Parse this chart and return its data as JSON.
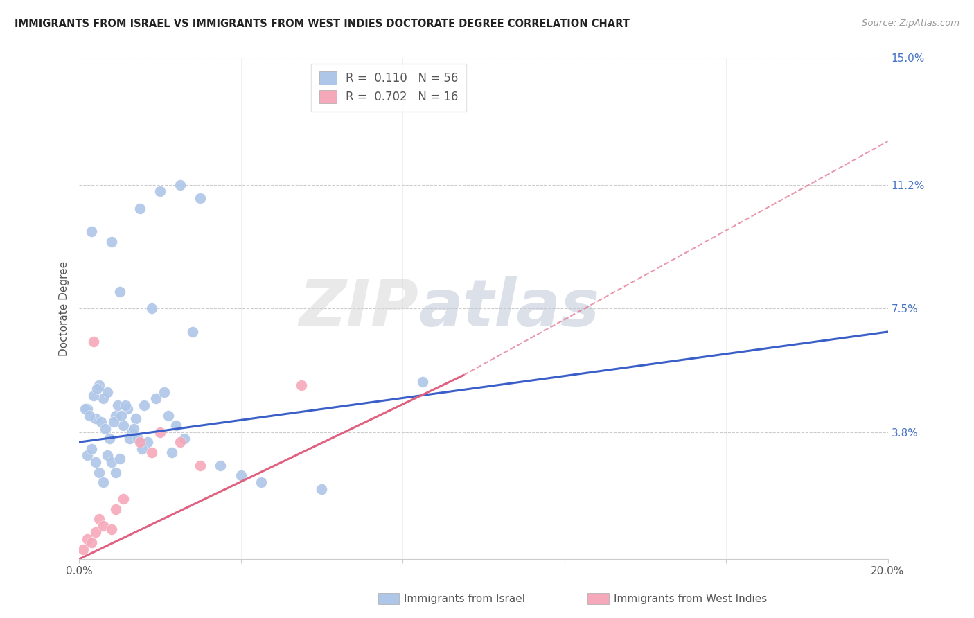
{
  "title": "IMMIGRANTS FROM ISRAEL VS IMMIGRANTS FROM WEST INDIES DOCTORATE DEGREE CORRELATION CHART",
  "source": "Source: ZipAtlas.com",
  "ylabel": "Doctorate Degree",
  "xlim": [
    0.0,
    20.0
  ],
  "ylim": [
    0.0,
    15.0
  ],
  "ytick_labels": [
    "3.8%",
    "7.5%",
    "11.2%",
    "15.0%"
  ],
  "ytick_values": [
    3.8,
    7.5,
    11.2,
    15.0
  ],
  "israel_color": "#aec6e8",
  "west_indies_color": "#f5a8ba",
  "israel_line_color": "#3a5fc8",
  "west_indies_line_color": "#e06080",
  "israel_R": 0.11,
  "israel_N": 56,
  "west_indies_R": 0.702,
  "west_indies_N": 16,
  "legend_label_1": "Immigrants from Israel",
  "legend_label_2": "Immigrants from West Indies",
  "watermark_zip": "ZIP",
  "watermark_atlas": "atlas",
  "background_color": "#ffffff",
  "israel_scatter_x": [
    0.5,
    0.8,
    1.5,
    2.0,
    2.5,
    3.0,
    0.3,
    1.0,
    1.8,
    2.8,
    0.2,
    0.4,
    0.6,
    0.7,
    0.9,
    1.1,
    1.2,
    1.3,
    1.4,
    1.6,
    1.7,
    1.9,
    2.1,
    2.2,
    2.3,
    2.4,
    0.15,
    0.25,
    0.35,
    0.45,
    0.55,
    0.65,
    0.75,
    0.85,
    0.95,
    1.05,
    1.15,
    1.25,
    1.35,
    0.2,
    0.3,
    0.4,
    0.5,
    0.6,
    0.7,
    0.8,
    0.9,
    1.0,
    8.5,
    2.6,
    3.5,
    4.0,
    4.5,
    6.0,
    1.45,
    1.55
  ],
  "israel_scatter_y": [
    5.2,
    9.5,
    10.5,
    11.0,
    11.2,
    10.8,
    9.8,
    8.0,
    7.5,
    6.8,
    4.5,
    4.2,
    4.8,
    5.0,
    4.3,
    4.0,
    4.5,
    3.8,
    4.2,
    4.6,
    3.5,
    4.8,
    5.0,
    4.3,
    3.2,
    4.0,
    4.5,
    4.3,
    4.9,
    5.1,
    4.1,
    3.9,
    3.6,
    4.1,
    4.6,
    4.3,
    4.6,
    3.6,
    3.9,
    3.1,
    3.3,
    2.9,
    2.6,
    2.3,
    3.1,
    2.9,
    2.6,
    3.0,
    5.3,
    3.6,
    2.8,
    2.5,
    2.3,
    2.1,
    3.6,
    3.3
  ],
  "west_indies_scatter_x": [
    0.1,
    0.2,
    0.3,
    0.4,
    0.5,
    0.6,
    0.8,
    0.9,
    1.1,
    1.5,
    1.8,
    2.0,
    2.5,
    3.0,
    0.35,
    5.5
  ],
  "west_indies_scatter_y": [
    0.3,
    0.6,
    0.5,
    0.8,
    1.2,
    1.0,
    0.9,
    1.5,
    1.8,
    3.5,
    3.2,
    3.8,
    3.5,
    2.8,
    6.5,
    5.2
  ],
  "israel_line_x0": 0.0,
  "israel_line_x1": 20.0,
  "israel_line_y0": 3.5,
  "israel_line_y1": 6.8,
  "wi_line_x0": 0.0,
  "wi_line_x1": 9.5,
  "wi_line_y0": 0.0,
  "wi_line_y1": 5.5,
  "wi_dash_x0": 9.5,
  "wi_dash_x1": 20.0,
  "wi_dash_y0": 5.5,
  "wi_dash_y1": 12.5
}
